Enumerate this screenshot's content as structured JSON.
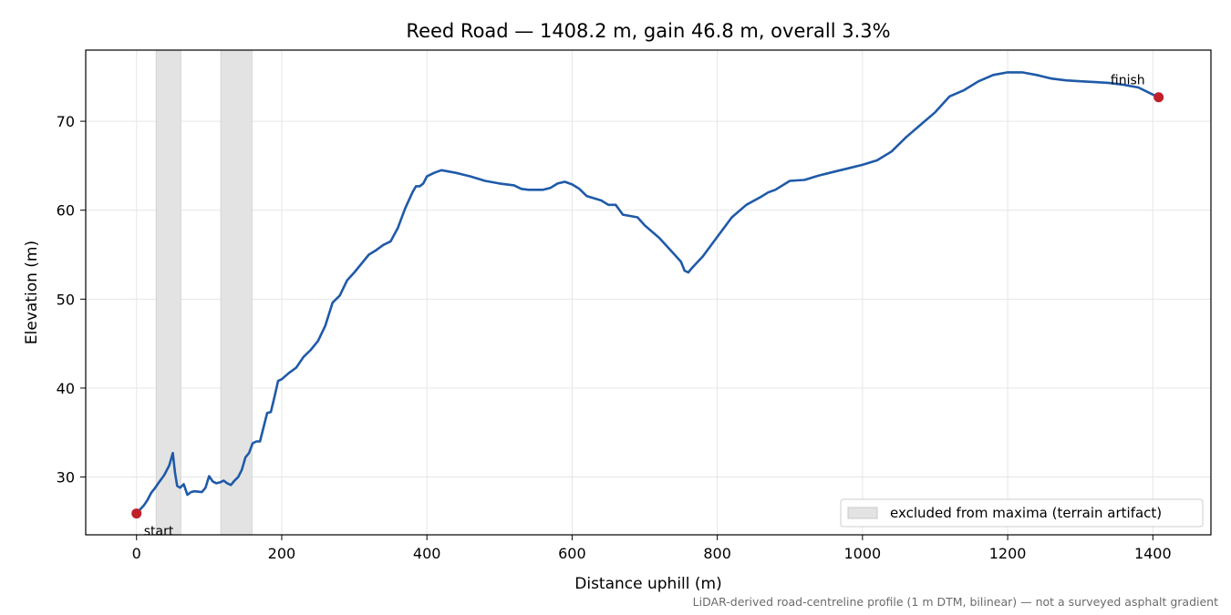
{
  "chart_data": {
    "type": "line",
    "title": "Reed Road — 1408.2 m, gain 46.8 m, overall 3.3%",
    "xlabel": "Distance uphill (m)",
    "ylabel": "Elevation (m)",
    "xlim": [
      -70,
      1480
    ],
    "ylim": [
      23.5,
      78
    ],
    "x_ticks": [
      0,
      200,
      400,
      600,
      800,
      1000,
      1200,
      1400
    ],
    "y_ticks": [
      30,
      40,
      50,
      60,
      70
    ],
    "grid": true,
    "line_color": "#1f5aa8",
    "series": [
      {
        "x": [
          0,
          10,
          15,
          20,
          25,
          30,
          38,
          45,
          50,
          53,
          56,
          60,
          65,
          70,
          75,
          80,
          90,
          95,
          100,
          105,
          110,
          115,
          120,
          125,
          130,
          135,
          140,
          145,
          150,
          155,
          160,
          165,
          170,
          180,
          185,
          190,
          195,
          200,
          210,
          220,
          230,
          240,
          250,
          260,
          270,
          280,
          290,
          300,
          310,
          320,
          330,
          340,
          350,
          360,
          370,
          380,
          385,
          390,
          395,
          400,
          410,
          420,
          440,
          460,
          480,
          500,
          520,
          530,
          540,
          560,
          570,
          580,
          590,
          600,
          610,
          620,
          640,
          650,
          660,
          670,
          690,
          700,
          720,
          740,
          750,
          755,
          760,
          765,
          780,
          800,
          820,
          840,
          860,
          870,
          880,
          900,
          920,
          940,
          960,
          980,
          1000,
          1020,
          1040,
          1060,
          1080,
          1100,
          1120,
          1140,
          1160,
          1180,
          1200,
          1220,
          1240,
          1260,
          1280,
          1300,
          1320,
          1340,
          1360,
          1380,
          1400,
          1408
        ],
        "y": [
          25.9,
          26.8,
          27.4,
          28.2,
          28.7,
          29.3,
          30.2,
          31.3,
          32.7,
          30.5,
          29.0,
          28.8,
          29.2,
          28.0,
          28.3,
          28.4,
          28.3,
          28.8,
          30.1,
          29.5,
          29.3,
          29.4,
          29.6,
          29.3,
          29.1,
          29.6,
          30.0,
          30.8,
          32.2,
          32.7,
          33.8,
          34.0,
          34.0,
          37.2,
          37.3,
          39.0,
          40.8,
          41.0,
          41.7,
          42.3,
          43.5,
          44.3,
          45.3,
          47.0,
          49.6,
          50.4,
          52.1,
          53.0,
          54.0,
          55.0,
          55.5,
          56.1,
          56.5,
          58.0,
          60.2,
          62.0,
          62.7,
          62.7,
          63.0,
          63.8,
          64.2,
          64.5,
          64.2,
          63.8,
          63.3,
          63.0,
          62.8,
          62.4,
          62.3,
          62.3,
          62.5,
          63.0,
          63.2,
          62.9,
          62.4,
          61.6,
          61.1,
          60.6,
          60.6,
          59.5,
          59.2,
          58.3,
          56.9,
          55.1,
          54.2,
          53.2,
          53.0,
          53.5,
          54.8,
          57.0,
          59.2,
          60.6,
          61.5,
          62.0,
          62.3,
          63.3,
          63.4,
          63.9,
          64.3,
          64.7,
          65.1,
          65.6,
          66.6,
          68.2,
          69.6,
          71.0,
          72.8,
          73.5,
          74.5,
          75.2,
          75.5,
          75.5,
          75.2,
          74.8,
          74.6,
          74.5,
          74.4,
          74.3,
          74.1,
          73.8,
          73.0,
          72.7
        ]
      }
    ],
    "excluded_bands": [
      [
        27,
        61
      ],
      [
        116,
        159
      ]
    ],
    "excluded_color": "#e3e3e3",
    "markers": [
      {
        "x": 0,
        "y": 25.9,
        "label": "start",
        "color": "#c0202a"
      },
      {
        "x": 1408,
        "y": 72.7,
        "label": "finish",
        "color": "#c0202a"
      }
    ],
    "legend": {
      "position": "bottom-right",
      "entries": [
        "excluded from maxima (terrain artifact)"
      ]
    },
    "footnote": "LiDAR-derived road-centreline profile (1 m DTM, bilinear) — not a surveyed asphalt gradient"
  }
}
